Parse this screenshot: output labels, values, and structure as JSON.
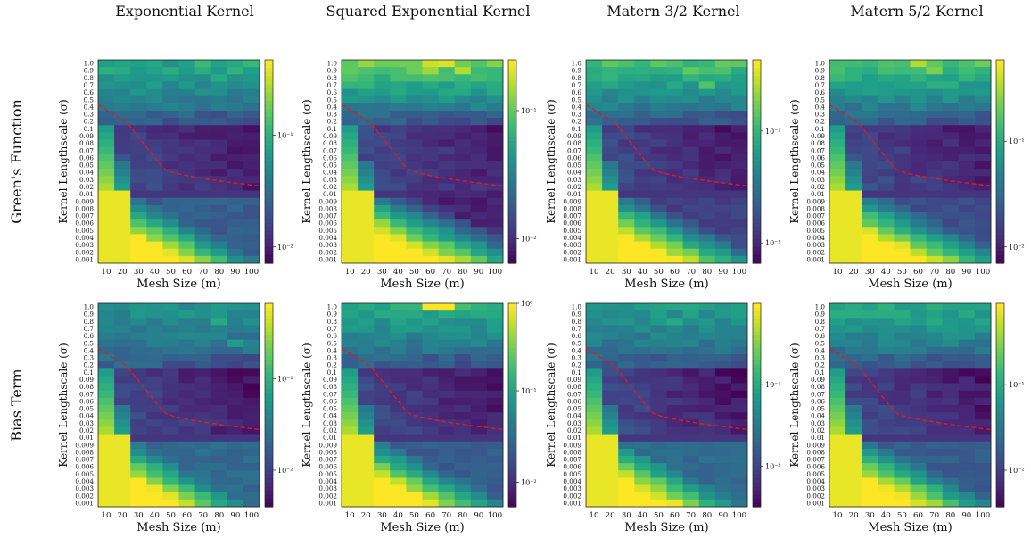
{
  "column_titles": [
    "Exponential Kernel",
    "Squared Exponential Kernel",
    "Matern 3/2 Kernel",
    "Matern 5/2 Kernel"
  ],
  "row_titles": [
    "Green's Function",
    "Bias Term"
  ],
  "chart_data": [
    {
      "type": "heatmap",
      "row": 0,
      "col": 0,
      "kernel": "Exponential Kernel",
      "xlabel": "Mesh Size (m)",
      "ylabel": "Kernel Lengthscale (σ)",
      "colorbar_ticks": [
        "10⁻¹",
        "10⁻²"
      ],
      "colorbar_levels": [
        0.63,
        0.08
      ],
      "scale": "log",
      "peak": 0.62,
      "skew": 0.35,
      "bottom_dark": 0.25,
      "patches": [
        [
          5,
          1,
          0.55
        ],
        [
          7,
          2,
          0.6
        ],
        [
          4,
          0,
          0.5
        ]
      ]
    },
    {
      "type": "heatmap",
      "row": 0,
      "col": 1,
      "kernel": "Squared Exponential Kernel",
      "xlabel": "Mesh Size (m)",
      "ylabel": "Kernel Lengthscale (σ)",
      "colorbar_ticks": [
        "10⁻¹",
        "10⁻²"
      ],
      "colorbar_levels": [
        0.75,
        0.12
      ],
      "scale": "log",
      "peak": 0.78,
      "skew": 0.15,
      "bottom_dark": 0.05,
      "patches": [
        [
          5,
          0,
          0.92
        ],
        [
          6,
          0,
          0.95
        ],
        [
          7,
          1,
          0.88
        ],
        [
          5,
          1,
          0.85
        ]
      ]
    },
    {
      "type": "heatmap",
      "row": 0,
      "col": 2,
      "kernel": "Matern 3/2 Kernel",
      "xlabel": "Mesh Size (m)",
      "ylabel": "Kernel Lengthscale (σ)",
      "colorbar_ticks": [
        "10⁻¹",
        "10⁻²"
      ],
      "colorbar_levels": [
        0.65,
        0.1
      ],
      "scale": "log",
      "peak": 0.7,
      "skew": 0.25,
      "bottom_dark": 0.15,
      "patches": [
        [
          6,
          1,
          0.75
        ],
        [
          7,
          3,
          0.72
        ]
      ]
    },
    {
      "type": "heatmap",
      "row": 0,
      "col": 3,
      "kernel": "Matern 5/2 Kernel",
      "xlabel": "Mesh Size (m)",
      "ylabel": "Kernel Lengthscale (σ)",
      "colorbar_ticks": [
        "10⁻¹",
        "10⁻²"
      ],
      "colorbar_levels": [
        0.6,
        0.08
      ],
      "scale": "log",
      "peak": 0.72,
      "skew": 0.2,
      "bottom_dark": 0.2,
      "patches": [
        [
          5,
          0,
          0.88
        ],
        [
          6,
          1,
          0.8
        ]
      ]
    },
    {
      "type": "heatmap",
      "row": 1,
      "col": 0,
      "kernel": "Exponential Kernel",
      "xlabel": "Mesh Size (m)",
      "ylabel": "Kernel Lengthscale (σ)",
      "colorbar_ticks": [
        "10⁻¹",
        "10⁻²"
      ],
      "colorbar_levels": [
        0.63,
        0.18
      ],
      "scale": "log",
      "peak": 0.5,
      "skew": 0.4,
      "bottom_dark": 0.3,
      "patches": [
        [
          7,
          2,
          0.6
        ],
        [
          5,
          1,
          0.55
        ],
        [
          8,
          5,
          0.55
        ]
      ]
    },
    {
      "type": "heatmap",
      "row": 1,
      "col": 1,
      "kernel": "Squared Exponential Kernel",
      "xlabel": "Mesh Size (m)",
      "ylabel": "Kernel Lengthscale (σ)",
      "colorbar_ticks": [
        "10⁰",
        "10⁻¹",
        "10⁻²"
      ],
      "colorbar_levels": [
        1.0,
        0.57,
        0.12
      ],
      "scale": "log",
      "peak": 0.6,
      "skew": 0.3,
      "bottom_dark": 0.25,
      "patches": [
        [
          5,
          0,
          1.0
        ],
        [
          6,
          0,
          1.0
        ],
        [
          7,
          0,
          0.7
        ],
        [
          4,
          1,
          0.6
        ]
      ]
    },
    {
      "type": "heatmap",
      "row": 1,
      "col": 2,
      "kernel": "Matern 3/2 Kernel",
      "xlabel": "Mesh Size (m)",
      "ylabel": "Kernel Lengthscale (σ)",
      "colorbar_ticks": [
        "10⁻¹",
        "10⁻²"
      ],
      "colorbar_levels": [
        0.6,
        0.2
      ],
      "scale": "log",
      "peak": 0.55,
      "skew": 0.35,
      "bottom_dark": 0.3,
      "patches": [
        [
          5,
          2,
          0.6
        ],
        [
          6,
          1,
          0.58
        ]
      ]
    },
    {
      "type": "heatmap",
      "row": 1,
      "col": 3,
      "kernel": "Matern 5/2 Kernel",
      "xlabel": "Mesh Size (m)",
      "ylabel": "Kernel Lengthscale (σ)",
      "colorbar_ticks": [
        "10⁻¹",
        "10⁻²"
      ],
      "colorbar_levels": [
        0.6,
        0.18
      ],
      "scale": "log",
      "peak": 0.6,
      "skew": 0.3,
      "bottom_dark": 0.25,
      "patches": [
        [
          4,
          1,
          0.62
        ],
        [
          6,
          2,
          0.6
        ]
      ]
    }
  ],
  "axes": {
    "x_ticks": [
      "10",
      "20",
      "30",
      "40",
      "50",
      "60",
      "70",
      "80",
      "90",
      "100"
    ],
    "y_ticks": [
      "1.0",
      "0.9",
      "0.8",
      "0.7",
      "0.6",
      "0.5",
      "0.4",
      "0.3",
      "0.2",
      "0.1",
      "0.09",
      "0.08",
      "0.07",
      "0.06",
      "0.05",
      "0.04",
      "0.03",
      "0.02",
      "0.01",
      "0.009",
      "0.008",
      "0.007",
      "0.006",
      "0.005",
      "0.004",
      "0.003",
      "0.002",
      "0.001"
    ]
  },
  "overlay": {
    "style": "dashed",
    "color": "#e31a1c"
  },
  "colors": {
    "colormap": "viridis"
  }
}
